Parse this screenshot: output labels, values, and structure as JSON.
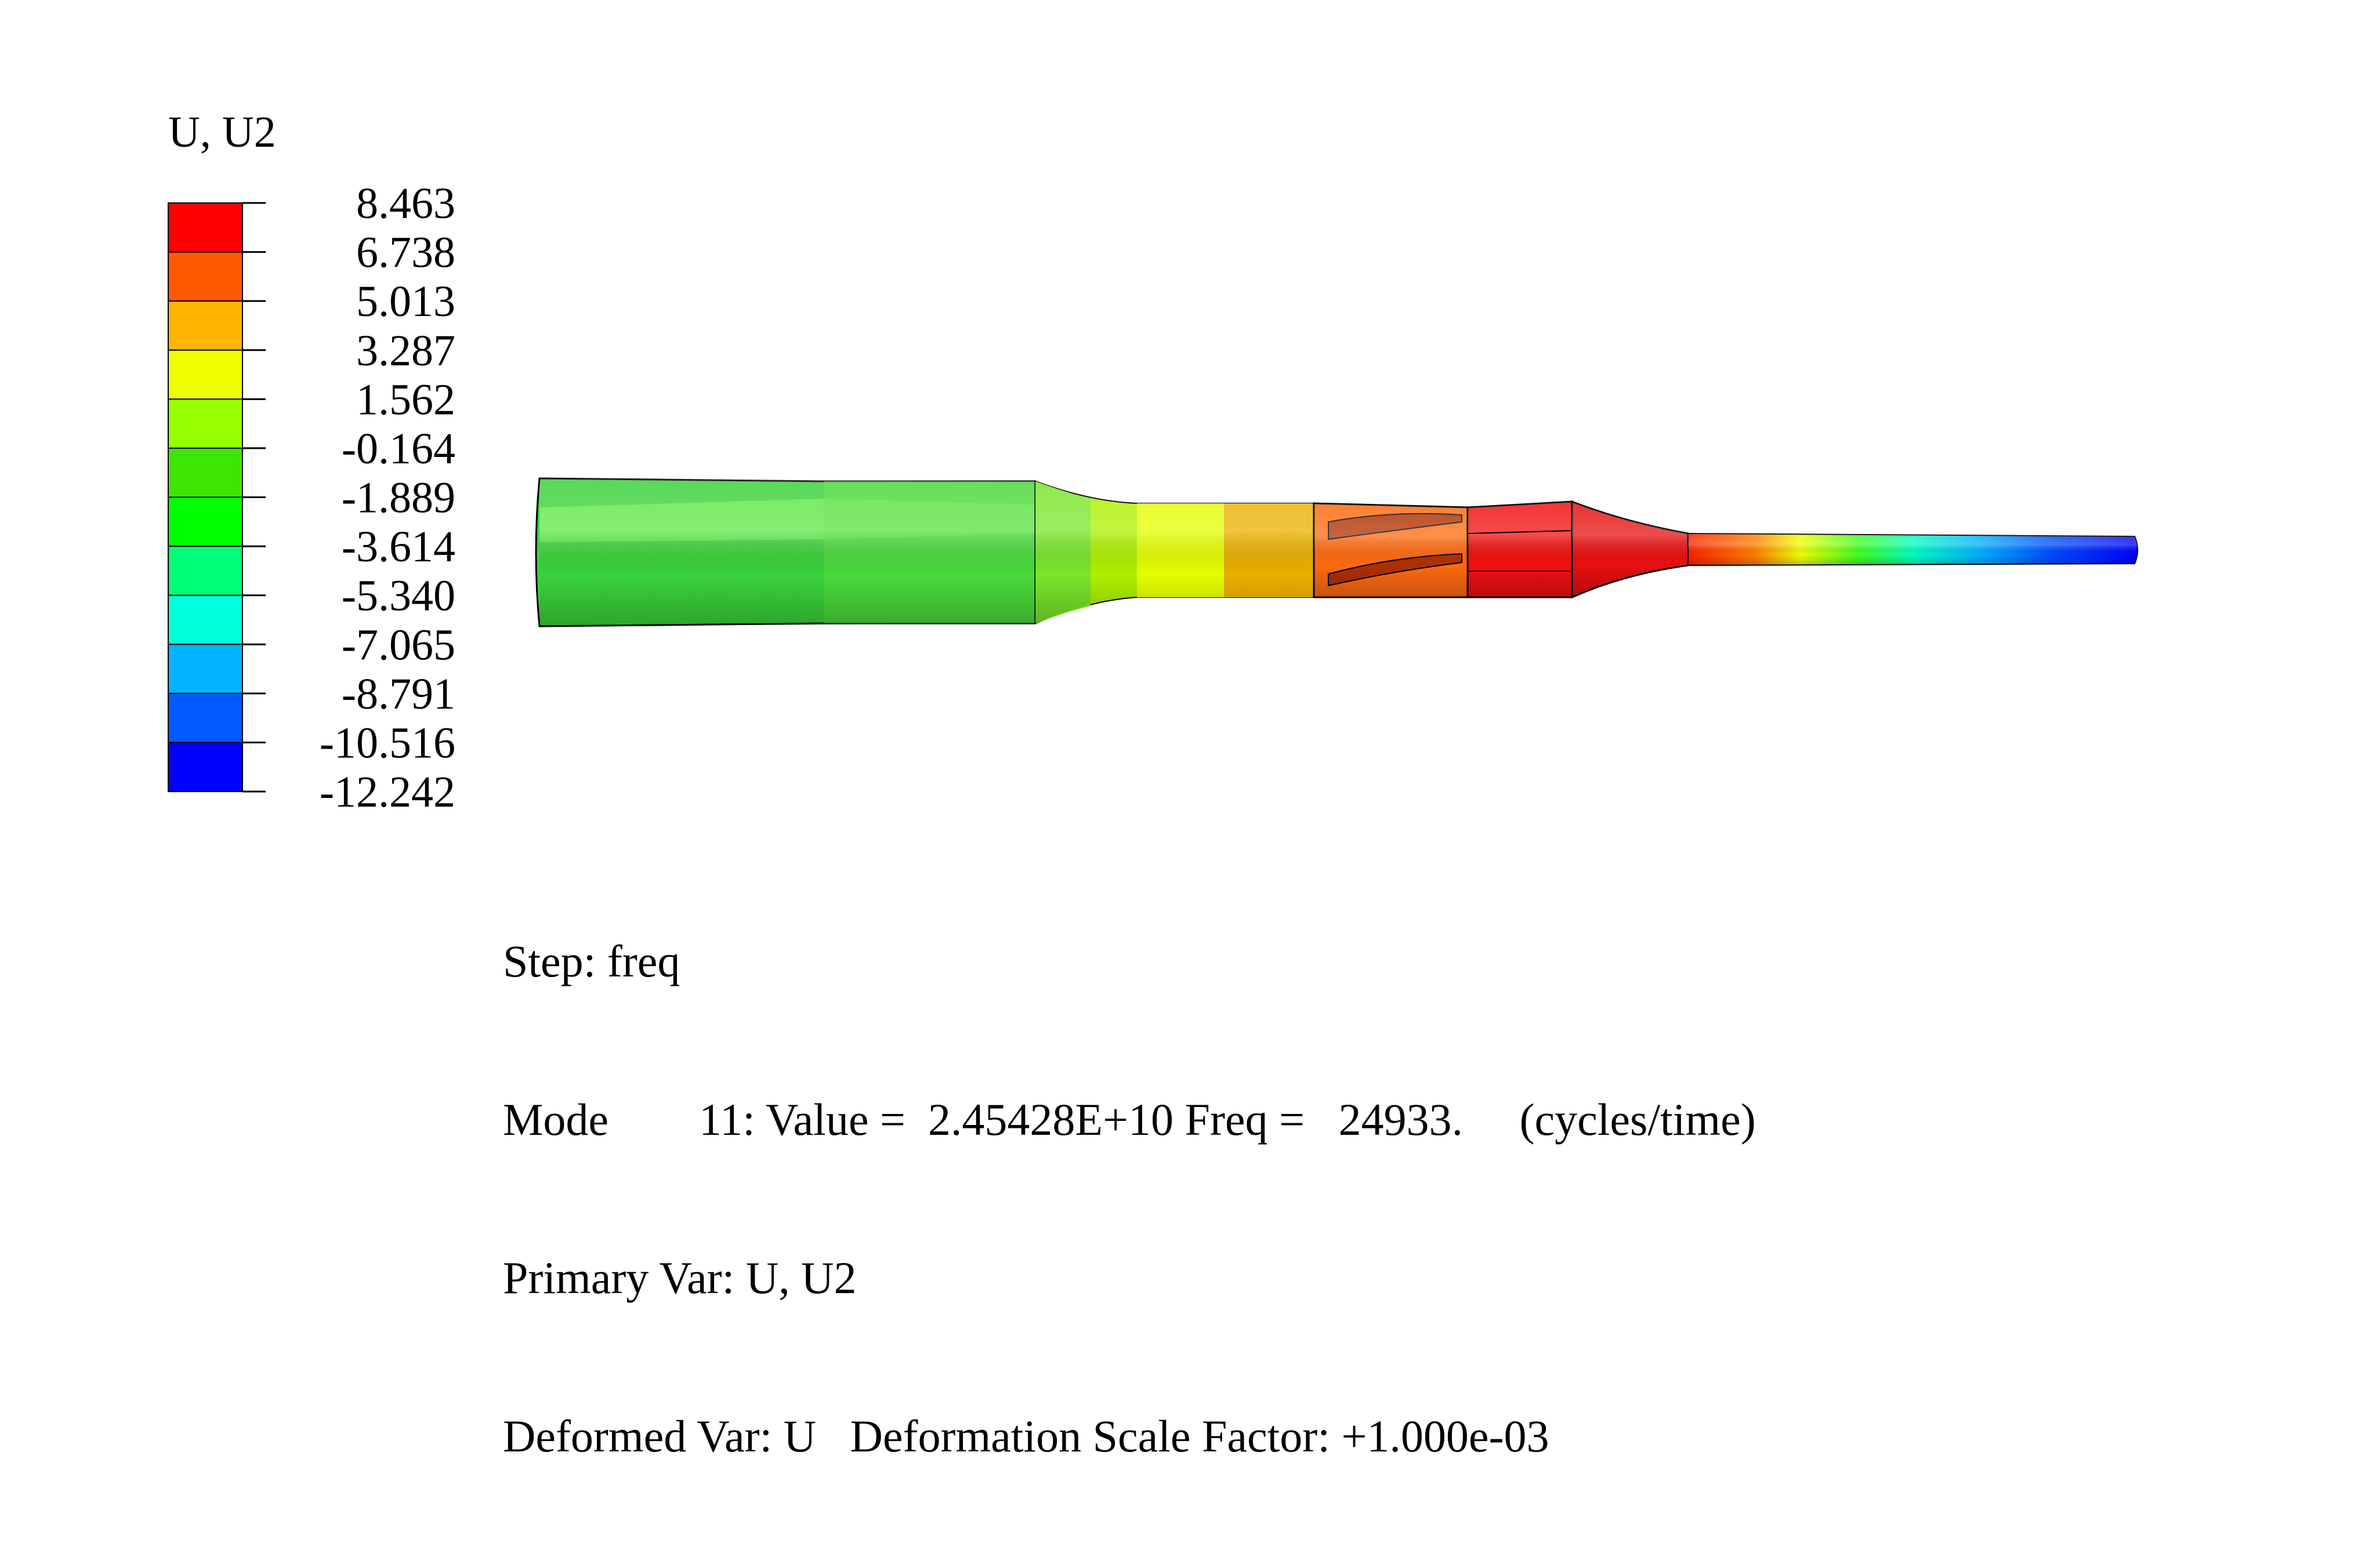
{
  "legend": {
    "title": "U, U2",
    "values": [
      "8.463",
      "6.738",
      "5.013",
      "3.287",
      "1.562",
      "-0.164",
      "-1.889",
      "-3.614",
      "-5.340",
      "-7.065",
      "-8.791",
      "-10.516",
      "-12.242"
    ],
    "colors": [
      "#ff0000",
      "#ff5a00",
      "#ffb400",
      "#f0ff00",
      "#96ff00",
      "#3ce600",
      "#00ff00",
      "#00ff78",
      "#00ffdc",
      "#00b4ff",
      "#005aff",
      "#0000ff"
    ]
  },
  "info": {
    "step": "Step: freq",
    "mode": "Mode        11: Value =  2.45428E+10 Freq =   24933.     (cycles/time)",
    "primary_var": "Primary Var: U, U2",
    "deformed_var": "Deformed Var: U   Deformation Scale Factor: +1.000e-03"
  }
}
